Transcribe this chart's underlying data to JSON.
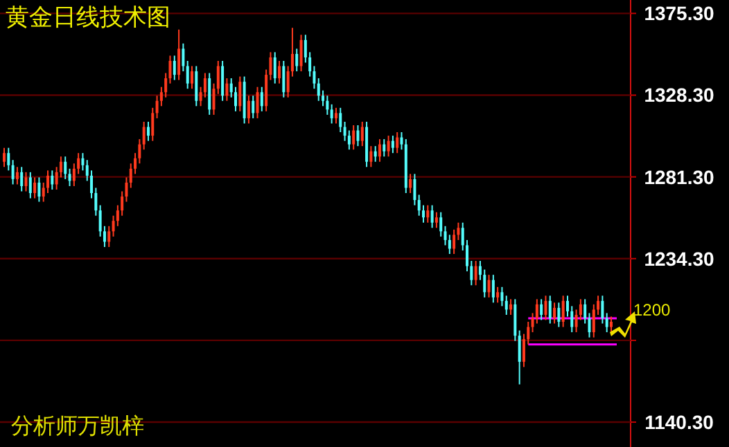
{
  "chart_data": {
    "type": "candlestick",
    "title": "黄金日线技术图",
    "annotations": [
      "分析师万凯梓"
    ],
    "categories": [
      null,
      null,
      null,
      null,
      null,
      null,
      null,
      null,
      null,
      null,
      null,
      null,
      null,
      null,
      null,
      null,
      null,
      null,
      null,
      null,
      null,
      null,
      null,
      null,
      null,
      null,
      null,
      null,
      null,
      null,
      null,
      null,
      null,
      null,
      null,
      null,
      null,
      null,
      null,
      null,
      null,
      null,
      null,
      null,
      null,
      null,
      null,
      null,
      null,
      null,
      null,
      null,
      null,
      null,
      null,
      null,
      null,
      null,
      null,
      null,
      null,
      null,
      null,
      null,
      null,
      null,
      null,
      null,
      null,
      null,
      null,
      null,
      null,
      null,
      null,
      null,
      null,
      null,
      null,
      null,
      null,
      null,
      null,
      null,
      null,
      null,
      null,
      null,
      null,
      null,
      null,
      null,
      null,
      null,
      null,
      null,
      null,
      null,
      null,
      null,
      null,
      null,
      null,
      null,
      null,
      null,
      null,
      null,
      null,
      null,
      null,
      null,
      null,
      null,
      null,
      null,
      null,
      null,
      null,
      null,
      null,
      null,
      null,
      null,
      null,
      null,
      null,
      null,
      null,
      null,
      null,
      null,
      null,
      null,
      null,
      null,
      null,
      null,
      null,
      null
    ],
    "ohlc": [
      [
        1290,
        1298,
        1287,
        1295
      ],
      [
        1295,
        1298,
        1285,
        1288
      ],
      [
        1288,
        1291,
        1277,
        1280
      ],
      [
        1280,
        1287,
        1277,
        1284
      ],
      [
        1284,
        1287,
        1273,
        1276
      ],
      [
        1276,
        1284,
        1273,
        1281
      ],
      [
        1281,
        1284,
        1269,
        1272
      ],
      [
        1272,
        1281,
        1269,
        1278
      ],
      [
        1278,
        1281,
        1267,
        1270
      ],
      [
        1270,
        1278,
        1267,
        1275
      ],
      [
        1275,
        1285,
        1272,
        1282
      ],
      [
        1282,
        1285,
        1274,
        1277
      ],
      [
        1277,
        1287,
        1274,
        1284
      ],
      [
        1284,
        1293,
        1281,
        1290
      ],
      [
        1290,
        1293,
        1280,
        1283
      ],
      [
        1283,
        1286,
        1276,
        1279
      ],
      [
        1279,
        1289,
        1276,
        1286
      ],
      [
        1286,
        1295,
        1283,
        1292
      ],
      [
        1292,
        1295,
        1285,
        1288
      ],
      [
        1288,
        1291,
        1279,
        1282
      ],
      [
        1282,
        1285,
        1269,
        1272
      ],
      [
        1272,
        1275,
        1259,
        1262
      ],
      [
        1262,
        1265,
        1247,
        1250
      ],
      [
        1250,
        1253,
        1241,
        1244
      ],
      [
        1244,
        1253,
        1241,
        1250
      ],
      [
        1250,
        1259,
        1247,
        1256
      ],
      [
        1256,
        1265,
        1253,
        1262
      ],
      [
        1262,
        1273,
        1259,
        1270
      ],
      [
        1270,
        1281,
        1267,
        1278
      ],
      [
        1278,
        1289,
        1275,
        1286
      ],
      [
        1286,
        1295,
        1283,
        1292
      ],
      [
        1292,
        1303,
        1289,
        1300
      ],
      [
        1300,
        1313,
        1297,
        1310
      ],
      [
        1310,
        1313,
        1302,
        1305
      ],
      [
        1305,
        1321,
        1302,
        1318
      ],
      [
        1318,
        1328,
        1315,
        1325
      ],
      [
        1325,
        1333,
        1322,
        1330
      ],
      [
        1330,
        1341,
        1327,
        1338
      ],
      [
        1338,
        1351,
        1335,
        1348
      ],
      [
        1348,
        1351,
        1337,
        1340
      ],
      [
        1340,
        1366,
        1337,
        1355
      ],
      [
        1355,
        1358,
        1342,
        1345
      ],
      [
        1345,
        1348,
        1332,
        1335
      ],
      [
        1335,
        1345,
        1332,
        1342
      ],
      [
        1342,
        1345,
        1322,
        1325
      ],
      [
        1325,
        1333,
        1322,
        1330
      ],
      [
        1330,
        1341,
        1327,
        1338
      ],
      [
        1338,
        1341,
        1317,
        1320
      ],
      [
        1320,
        1335,
        1317,
        1332
      ],
      [
        1332,
        1348,
        1329,
        1345
      ],
      [
        1345,
        1348,
        1325,
        1328
      ],
      [
        1328,
        1338,
        1325,
        1335
      ],
      [
        1335,
        1338,
        1327,
        1330
      ],
      [
        1330,
        1333,
        1319,
        1322
      ],
      [
        1322,
        1339,
        1319,
        1336
      ],
      [
        1336,
        1339,
        1312,
        1315
      ],
      [
        1315,
        1328,
        1312,
        1325
      ],
      [
        1325,
        1328,
        1315,
        1318
      ],
      [
        1318,
        1333,
        1315,
        1330
      ],
      [
        1330,
        1333,
        1319,
        1322
      ],
      [
        1322,
        1343,
        1319,
        1340
      ],
      [
        1340,
        1353,
        1337,
        1350
      ],
      [
        1350,
        1353,
        1335,
        1338
      ],
      [
        1338,
        1348,
        1335,
        1345
      ],
      [
        1345,
        1348,
        1327,
        1330
      ],
      [
        1330,
        1345,
        1327,
        1342
      ],
      [
        1342,
        1367,
        1339,
        1352
      ],
      [
        1352,
        1355,
        1342,
        1345
      ],
      [
        1345,
        1363,
        1342,
        1360
      ],
      [
        1360,
        1363,
        1347,
        1350
      ],
      [
        1350,
        1353,
        1339,
        1342
      ],
      [
        1342,
        1345,
        1332,
        1335
      ],
      [
        1335,
        1338,
        1325,
        1328
      ],
      [
        1328,
        1331,
        1322,
        1325
      ],
      [
        1325,
        1328,
        1317,
        1320
      ],
      [
        1320,
        1323,
        1312,
        1315
      ],
      [
        1315,
        1321,
        1312,
        1318
      ],
      [
        1318,
        1321,
        1307,
        1310
      ],
      [
        1310,
        1313,
        1302,
        1305
      ],
      [
        1305,
        1308,
        1297,
        1300
      ],
      [
        1300,
        1311,
        1297,
        1308
      ],
      [
        1308,
        1311,
        1299,
        1302
      ],
      [
        1302,
        1313,
        1299,
        1310
      ],
      [
        1310,
        1313,
        1287,
        1290
      ],
      [
        1290,
        1299,
        1287,
        1296
      ],
      [
        1296,
        1299,
        1290,
        1293
      ],
      [
        1293,
        1303,
        1290,
        1300
      ],
      [
        1300,
        1303,
        1293,
        1296
      ],
      [
        1296,
        1305,
        1293,
        1302
      ],
      [
        1302,
        1305,
        1295,
        1298
      ],
      [
        1298,
        1307,
        1295,
        1304
      ],
      [
        1304,
        1307,
        1297,
        1300
      ],
      [
        1300,
        1303,
        1272,
        1275
      ],
      [
        1275,
        1283,
        1272,
        1280
      ],
      [
        1280,
        1283,
        1265,
        1268
      ],
      [
        1268,
        1271,
        1259,
        1262
      ],
      [
        1262,
        1265,
        1255,
        1258
      ],
      [
        1258,
        1265,
        1255,
        1262
      ],
      [
        1262,
        1265,
        1252,
        1255
      ],
      [
        1255,
        1261,
        1252,
        1258
      ],
      [
        1258,
        1261,
        1247,
        1250
      ],
      [
        1250,
        1253,
        1242,
        1245
      ],
      [
        1245,
        1248,
        1237,
        1240
      ],
      [
        1240,
        1251,
        1237,
        1248
      ],
      [
        1248,
        1255,
        1245,
        1252
      ],
      [
        1252,
        1255,
        1239,
        1242
      ],
      [
        1242,
        1245,
        1227,
        1230
      ],
      [
        1230,
        1233,
        1219,
        1222
      ],
      [
        1222,
        1233,
        1219,
        1230
      ],
      [
        1230,
        1233,
        1222,
        1225
      ],
      [
        1225,
        1228,
        1212,
        1215
      ],
      [
        1215,
        1225,
        1212,
        1222
      ],
      [
        1222,
        1225,
        1209,
        1212
      ],
      [
        1212,
        1218,
        1209,
        1215
      ],
      [
        1215,
        1218,
        1207,
        1210
      ],
      [
        1210,
        1213,
        1202,
        1205
      ],
      [
        1205,
        1211,
        1202,
        1208
      ],
      [
        1208,
        1211,
        1187,
        1190
      ],
      [
        1190,
        1193,
        1162,
        1175
      ],
      [
        1175,
        1191,
        1172,
        1188
      ],
      [
        1188,
        1198,
        1185,
        1195
      ],
      [
        1195,
        1203,
        1192,
        1200
      ],
      [
        1200,
        1211,
        1197,
        1208
      ],
      [
        1208,
        1211,
        1199,
        1202
      ],
      [
        1202,
        1213,
        1199,
        1210
      ],
      [
        1210,
        1213,
        1197,
        1200
      ],
      [
        1200,
        1209,
        1197,
        1206
      ],
      [
        1206,
        1209,
        1195,
        1198
      ],
      [
        1198,
        1213,
        1195,
        1210
      ],
      [
        1210,
        1213,
        1201,
        1204
      ],
      [
        1204,
        1207,
        1192,
        1195
      ],
      [
        1195,
        1205,
        1192,
        1202
      ],
      [
        1202,
        1211,
        1199,
        1208
      ],
      [
        1208,
        1211,
        1197,
        1200
      ],
      [
        1200,
        1203,
        1189,
        1192
      ],
      [
        1192,
        1208,
        1189,
        1205
      ],
      [
        1205,
        1213,
        1202,
        1210
      ],
      [
        1210,
        1213,
        1197,
        1200
      ],
      [
        1200,
        1203,
        1192,
        1195
      ],
      [
        1195,
        1201,
        1192,
        1198
      ]
    ],
    "colors": [
      "#ff3a1e",
      "#54fcfc",
      "#54fcfc",
      "#ff3a1e",
      "#54fcfc",
      "#ff3a1e",
      "#54fcfc",
      "#ff3a1e",
      "#54fcfc",
      "#ff3a1e",
      "#ff3a1e",
      "#54fcfc",
      "#ff3a1e",
      "#ff3a1e",
      "#54fcfc",
      "#54fcfc",
      "#ff3a1e",
      "#ff3a1e",
      "#54fcfc",
      "#54fcfc",
      "#54fcfc",
      "#54fcfc",
      "#54fcfc",
      "#54fcfc",
      "#ff3a1e",
      "#ff3a1e",
      "#ff3a1e",
      "#ff3a1e",
      "#ff3a1e",
      "#ff3a1e",
      "#ff3a1e",
      "#ff3a1e",
      "#ff3a1e",
      "#54fcfc",
      "#ff3a1e",
      "#ff3a1e",
      "#ff3a1e",
      "#ff3a1e",
      "#ff3a1e",
      "#54fcfc",
      "#ff3a1e",
      "#54fcfc",
      "#54fcfc",
      "#ff3a1e",
      "#54fcfc",
      "#ff3a1e",
      "#ff3a1e",
      "#54fcfc",
      "#ff3a1e",
      "#ff3a1e",
      "#54fcfc",
      "#ff3a1e",
      "#54fcfc",
      "#54fcfc",
      "#ff3a1e",
      "#54fcfc",
      "#ff3a1e",
      "#54fcfc",
      "#ff3a1e",
      "#54fcfc",
      "#ff3a1e",
      "#ff3a1e",
      "#54fcfc",
      "#ff3a1e",
      "#54fcfc",
      "#ff3a1e",
      "#ff3a1e",
      "#54fcfc",
      "#ff3a1e",
      "#54fcfc",
      "#54fcfc",
      "#54fcfc",
      "#54fcfc",
      "#54fcfc",
      "#54fcfc",
      "#54fcfc",
      "#ff3a1e",
      "#54fcfc",
      "#54fcfc",
      "#54fcfc",
      "#ff3a1e",
      "#54fcfc",
      "#ff3a1e",
      "#54fcfc",
      "#ff3a1e",
      "#54fcfc",
      "#ff3a1e",
      "#54fcfc",
      "#ff3a1e",
      "#54fcfc",
      "#ff3a1e",
      "#54fcfc",
      "#54fcfc",
      "#ff3a1e",
      "#54fcfc",
      "#54fcfc",
      "#54fcfc",
      "#ff3a1e",
      "#54fcfc",
      "#ff3a1e",
      "#54fcfc",
      "#54fcfc",
      "#54fcfc",
      "#ff3a1e",
      "#ff3a1e",
      "#54fcfc",
      "#54fcfc",
      "#54fcfc",
      "#ff3a1e",
      "#54fcfc",
      "#54fcfc",
      "#ff3a1e",
      "#54fcfc",
      "#ff3a1e",
      "#54fcfc",
      "#54fcfc",
      "#ff3a1e",
      "#54fcfc",
      "#54fcfc",
      "#ff3a1e",
      "#ff3a1e",
      "#ff3a1e",
      "#ff3a1e",
      "#54fcfc",
      "#ff3a1e",
      "#54fcfc",
      "#ff3a1e",
      "#54fcfc",
      "#ff3a1e",
      "#54fcfc",
      "#54fcfc",
      "#ff3a1e",
      "#ff3a1e",
      "#54fcfc",
      "#54fcfc",
      "#ff3a1e",
      "#ff3a1e",
      "#54fcfc",
      "#54fcfc",
      "#ff3a1e"
    ],
    "ylim": [
      1126,
      1383
    ],
    "yticks": [
      {
        "value": 1140.3,
        "label": "1140.30"
      },
      {
        "value": 1187.3,
        "label": null
      },
      {
        "value": 1234.3,
        "label": "1234.30"
      },
      {
        "value": 1281.3,
        "label": "1281.30"
      },
      {
        "value": 1328.3,
        "label": "1328.30"
      },
      {
        "value": 1375.3,
        "label": "1375.30"
      }
    ],
    "grid": "y",
    "tick_labels": "y",
    "ref_lines": [
      {
        "axis": "y",
        "value": 1200,
        "label": "1200",
        "color": "#ff00ff"
      },
      {
        "axis": "y",
        "value": 1185,
        "label": null,
        "color": "#ff00ff"
      }
    ]
  }
}
